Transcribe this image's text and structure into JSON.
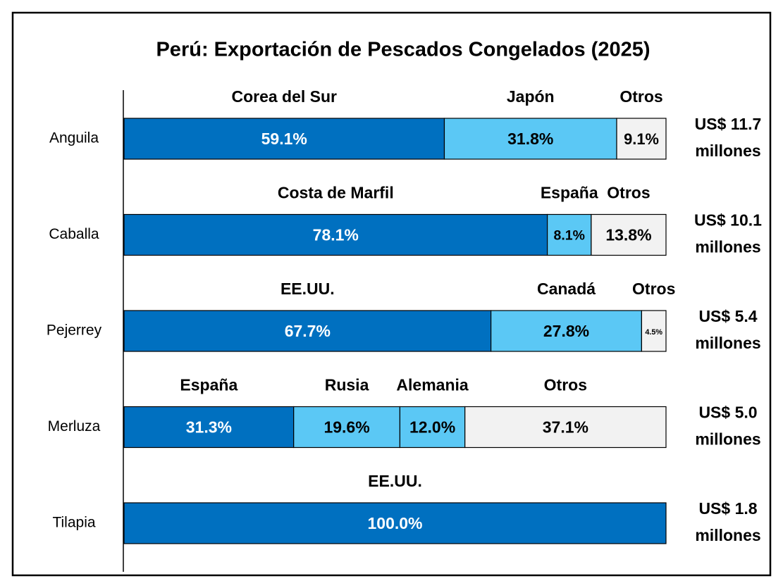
{
  "chart_data": {
    "type": "stacked-bar-horizontal",
    "title": "Perú: Exportación de Pescados Congelados (2025)",
    "xlim": [
      0,
      100
    ],
    "categories": [
      "Anguila",
      "Caballa",
      "Pejerrey",
      "Merluza",
      "Tilapia"
    ],
    "total_labels": [
      [
        "US$ 11.7",
        "millones"
      ],
      [
        "US$ 10.1",
        "millones"
      ],
      [
        "US$ 5.4",
        "millones"
      ],
      [
        "US$ 5.0",
        "millones"
      ],
      [
        "US$ 1.8",
        "millones"
      ]
    ],
    "rows": [
      {
        "names": [
          "Corea del Sur",
          "Japón",
          "Otros"
        ],
        "values": [
          59.1,
          31.8,
          9.1
        ],
        "value_labels": [
          "59.1%",
          "31.8%",
          "9.1%"
        ],
        "colors": [
          "#0070c0",
          "#5bc8f5",
          "#f2f2f2"
        ]
      },
      {
        "names": [
          "Costa de Marfil",
          "España",
          "Otros"
        ],
        "values": [
          78.1,
          8.1,
          13.8
        ],
        "value_labels": [
          "78.1%",
          "8.1%",
          "13.8%"
        ],
        "colors": [
          "#0070c0",
          "#5bc8f5",
          "#f2f2f2"
        ]
      },
      {
        "names": [
          "EE.UU.",
          "Canadá",
          "Otros"
        ],
        "values": [
          67.7,
          27.8,
          4.5
        ],
        "value_labels": [
          "67.7%",
          "27.8%",
          "4.5%"
        ],
        "colors": [
          "#0070c0",
          "#5bc8f5",
          "#f2f2f2"
        ]
      },
      {
        "names": [
          "España",
          "Rusia",
          "Alemania",
          "Otros"
        ],
        "values": [
          31.3,
          19.6,
          12.0,
          37.1
        ],
        "value_labels": [
          "31.3%",
          "19.6%",
          "12.0%",
          "37.1%"
        ],
        "colors": [
          "#0070c0",
          "#5bc8f5",
          "#5bc8f5",
          "#f2f2f2"
        ]
      },
      {
        "names": [
          "EE.UU."
        ],
        "values": [
          100.0
        ],
        "value_labels": [
          "100.0%"
        ],
        "colors": [
          "#0070c0"
        ]
      }
    ]
  }
}
